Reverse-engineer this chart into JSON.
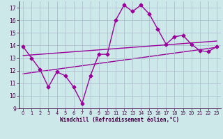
{
  "main_x": [
    0,
    1,
    2,
    3,
    4,
    5,
    6,
    7,
    8,
    9,
    10,
    11,
    12,
    13,
    14,
    15,
    16,
    17,
    18,
    19,
    20,
    21,
    22,
    23
  ],
  "main_y": [
    13.9,
    13.0,
    12.1,
    10.7,
    11.9,
    11.6,
    10.7,
    9.4,
    11.6,
    13.3,
    13.3,
    16.0,
    17.2,
    16.7,
    17.2,
    16.5,
    15.3,
    14.1,
    14.7,
    14.8,
    14.1,
    13.6,
    13.5,
    13.9
  ],
  "trend1_x": [
    0,
    23
  ],
  "trend1_y": [
    13.2,
    14.35
  ],
  "trend2_x": [
    0,
    23
  ],
  "trend2_y": [
    11.75,
    13.85
  ],
  "line_color": "#990099",
  "bg_color": "#cce8e8",
  "grid_color": "#aabbcc",
  "xlabel": "Windchill (Refroidissement éolien,°C)",
  "xlim": [
    -0.5,
    23.5
  ],
  "ylim": [
    9,
    17.5
  ],
  "yticks": [
    9,
    10,
    11,
    12,
    13,
    14,
    15,
    16,
    17
  ],
  "xticks": [
    0,
    1,
    2,
    3,
    4,
    5,
    6,
    7,
    8,
    9,
    10,
    11,
    12,
    13,
    14,
    15,
    16,
    17,
    18,
    19,
    20,
    21,
    22,
    23
  ],
  "marker": "D",
  "markersize": 2.5,
  "linewidth": 1.0
}
